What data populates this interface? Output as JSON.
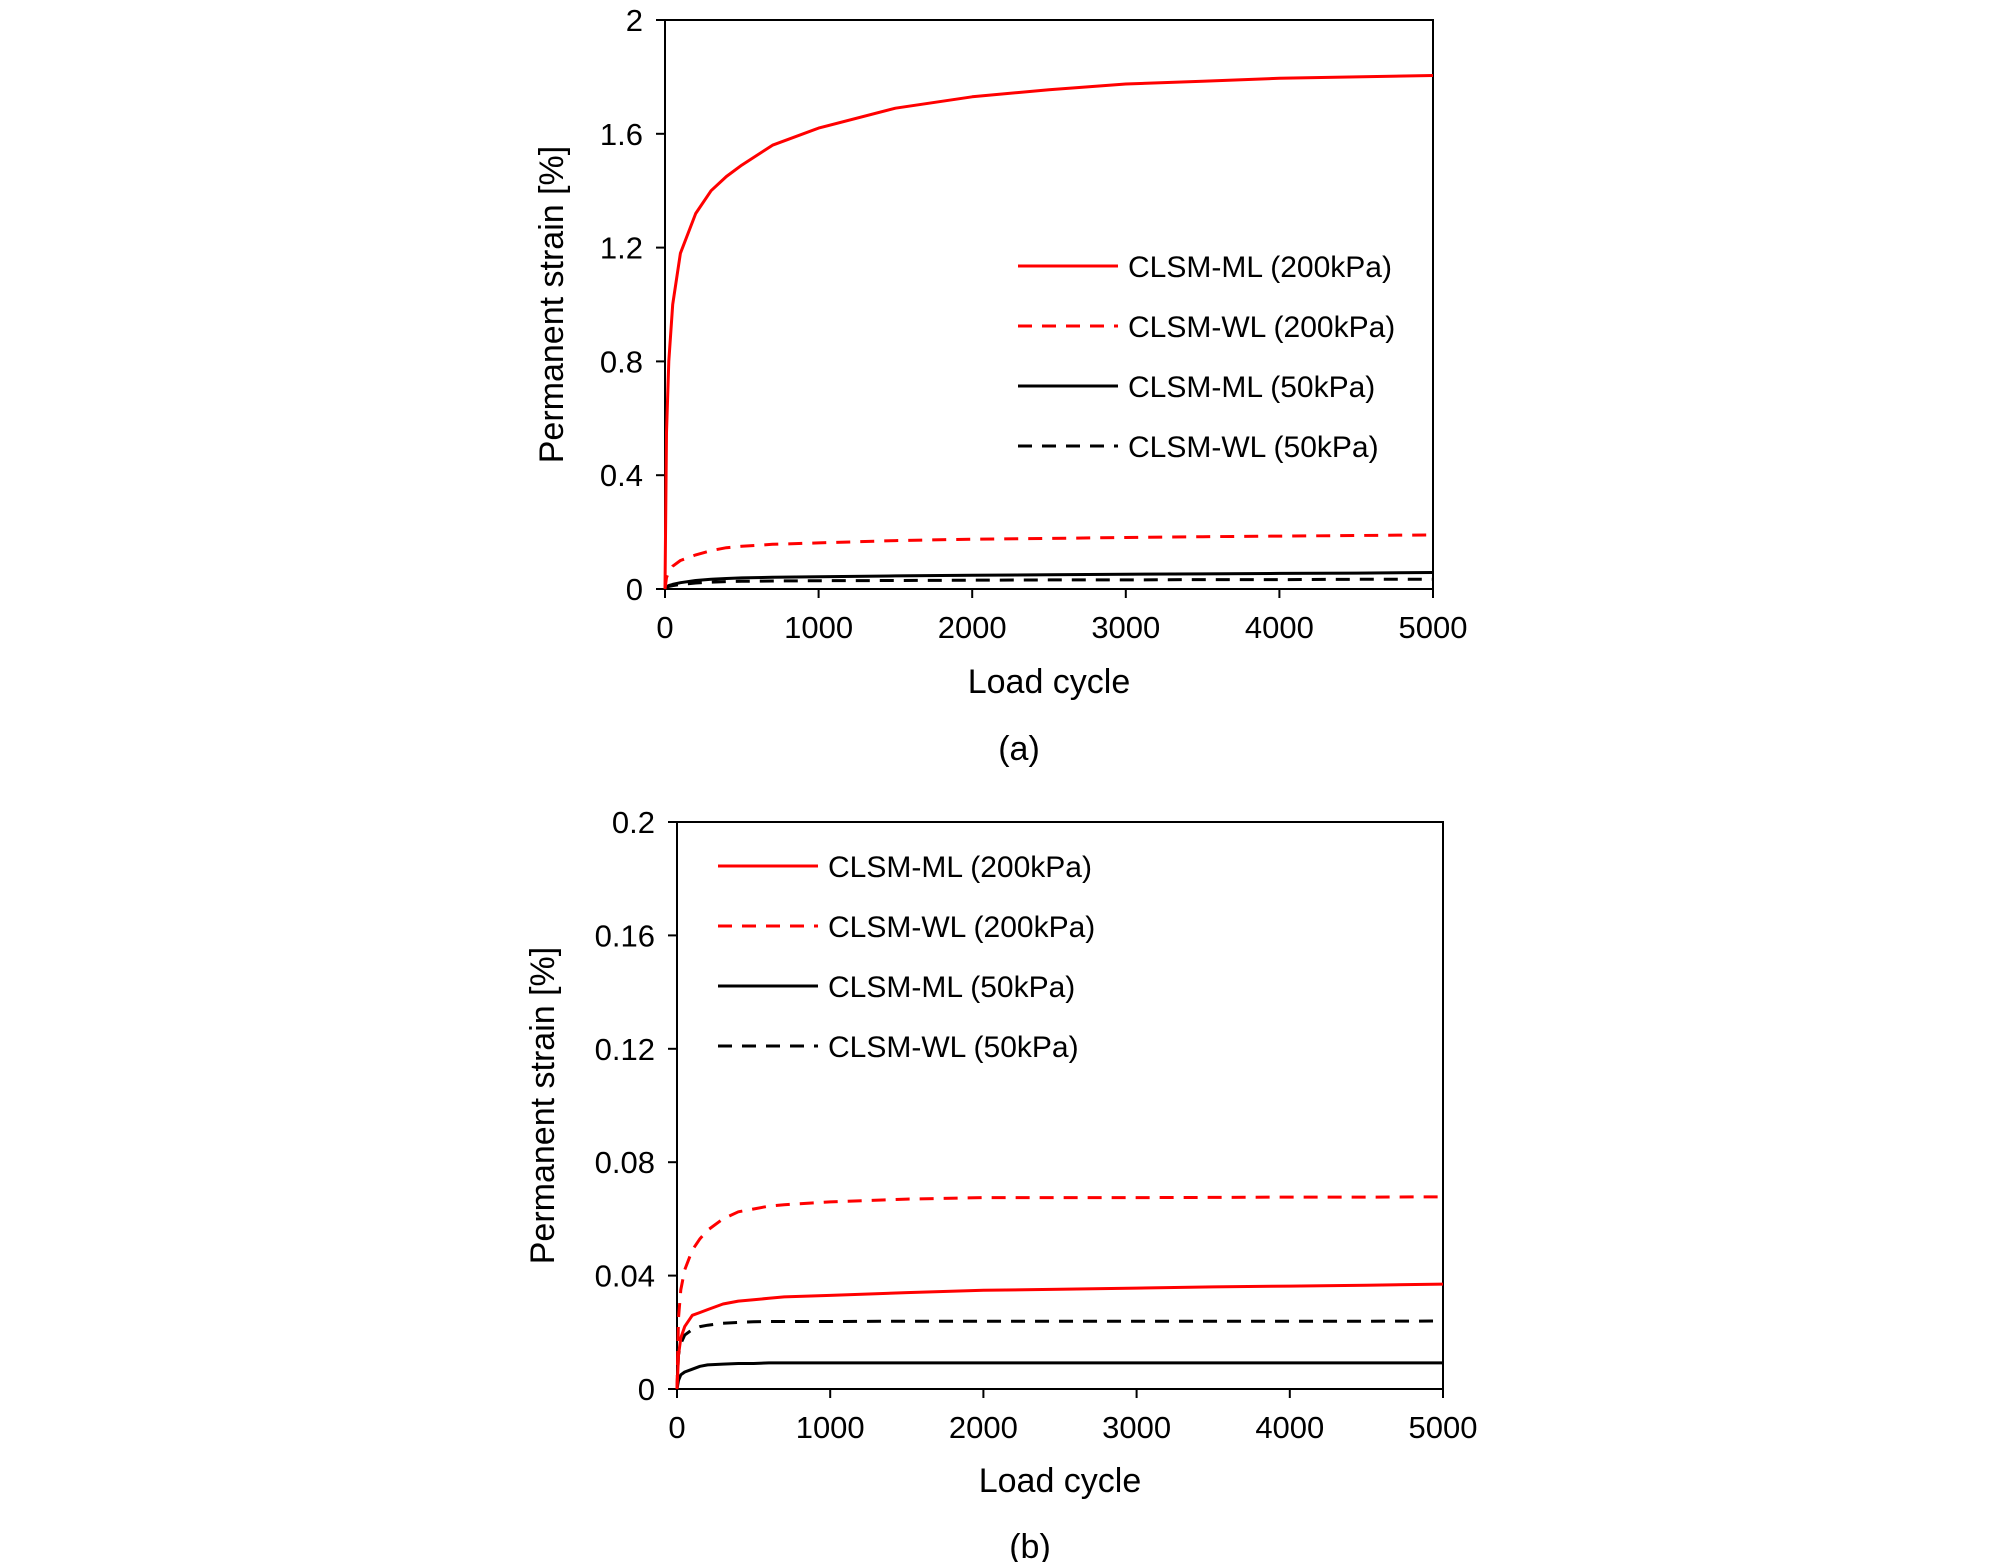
{
  "chart_data": [
    {
      "type": "line",
      "panel_label": "(a)",
      "xlabel": "Load cycle",
      "ylabel": "Permanent strain [%]",
      "xlim": [
        0,
        5000
      ],
      "ylim": [
        0,
        2
      ],
      "x_ticks": [
        0,
        1000,
        2000,
        3000,
        4000,
        5000
      ],
      "y_ticks": [
        0,
        0.4,
        0.8,
        1.2,
        1.6,
        2
      ],
      "y_tick_labels": [
        "0",
        "0.4",
        "0.8",
        "1.2",
        "1.6",
        "2"
      ],
      "grid": false,
      "legend_position": "center-right",
      "x": [
        0,
        10,
        25,
        50,
        100,
        200,
        300,
        400,
        500,
        700,
        1000,
        1500,
        2000,
        2500,
        3000,
        3500,
        4000,
        4500,
        5000
      ],
      "series": [
        {
          "name": "CLSM-ML (200kPa)",
          "color": "#ff0000",
          "dash": "solid",
          "values": [
            0,
            0.55,
            0.8,
            1.0,
            1.18,
            1.32,
            1.4,
            1.45,
            1.49,
            1.56,
            1.62,
            1.69,
            1.73,
            1.755,
            1.775,
            1.785,
            1.795,
            1.8,
            1.805
          ]
        },
        {
          "name": "CLSM-WL (200kPa)",
          "color": "#ff0000",
          "dash": "dashed",
          "values": [
            0,
            0.04,
            0.06,
            0.08,
            0.1,
            0.12,
            0.135,
            0.145,
            0.15,
            0.157,
            0.162,
            0.17,
            0.175,
            0.178,
            0.181,
            0.184,
            0.186,
            0.188,
            0.19
          ]
        },
        {
          "name": "CLSM-ML (50kPa)",
          "color": "#000000",
          "dash": "solid",
          "values": [
            0,
            0.008,
            0.012,
            0.016,
            0.022,
            0.03,
            0.034,
            0.037,
            0.039,
            0.041,
            0.043,
            0.046,
            0.048,
            0.05,
            0.052,
            0.053,
            0.055,
            0.056,
            0.058
          ]
        },
        {
          "name": "CLSM-WL (50kPa)",
          "color": "#000000",
          "dash": "dashed",
          "values": [
            0,
            0.006,
            0.009,
            0.012,
            0.016,
            0.021,
            0.024,
            0.026,
            0.027,
            0.028,
            0.029,
            0.03,
            0.031,
            0.032,
            0.032,
            0.033,
            0.033,
            0.034,
            0.034
          ]
        }
      ]
    },
    {
      "type": "line",
      "panel_label": "(b)",
      "xlabel": "Load cycle",
      "ylabel": "Permanent strain [%]",
      "xlim": [
        0,
        5000
      ],
      "ylim": [
        0,
        0.2
      ],
      "x_ticks": [
        0,
        1000,
        2000,
        3000,
        4000,
        5000
      ],
      "y_ticks": [
        0,
        0.04,
        0.08,
        0.12,
        0.16,
        0.2
      ],
      "y_tick_labels": [
        "0",
        "0.04",
        "0.08",
        "0.12",
        "0.16",
        "0.2"
      ],
      "grid": false,
      "legend_position": "top-left",
      "x": [
        0,
        10,
        25,
        50,
        100,
        150,
        200,
        300,
        400,
        500,
        600,
        700,
        1000,
        1500,
        2000,
        2500,
        3000,
        3500,
        4000,
        4500,
        5000
      ],
      "series": [
        {
          "name": "CLSM-ML (200kPa)",
          "color": "#ff0000",
          "dash": "solid",
          "values": [
            0,
            0.012,
            0.018,
            0.022,
            0.026,
            0.027,
            0.028,
            0.03,
            0.031,
            0.0315,
            0.032,
            0.0325,
            0.033,
            0.034,
            0.0348,
            0.0352,
            0.0356,
            0.036,
            0.0363,
            0.0366,
            0.037
          ]
        },
        {
          "name": "CLSM-WL (200kPa)",
          "color": "#ff0000",
          "dash": "dashed",
          "values": [
            0,
            0.025,
            0.035,
            0.042,
            0.049,
            0.053,
            0.056,
            0.06,
            0.0625,
            0.0635,
            0.0645,
            0.065,
            0.066,
            0.067,
            0.0675,
            0.0675,
            0.0675,
            0.0676,
            0.0677,
            0.0677,
            0.0678
          ]
        },
        {
          "name": "CLSM-ML (50kPa)",
          "color": "#000000",
          "dash": "solid",
          "values": [
            0,
            0.003,
            0.005,
            0.006,
            0.007,
            0.008,
            0.0085,
            0.0088,
            0.009,
            0.009,
            0.0092,
            0.0092,
            0.0092,
            0.0092,
            0.0092,
            0.0092,
            0.0092,
            0.0092,
            0.0092,
            0.0092,
            0.0092
          ]
        },
        {
          "name": "CLSM-WL (50kPa)",
          "color": "#000000",
          "dash": "dashed",
          "values": [
            0,
            0.012,
            0.016,
            0.019,
            0.021,
            0.022,
            0.0225,
            0.0232,
            0.0235,
            0.0237,
            0.0238,
            0.0238,
            0.0238,
            0.0239,
            0.0239,
            0.0239,
            0.0239,
            0.0239,
            0.0239,
            0.0239,
            0.024
          ]
        }
      ]
    }
  ]
}
